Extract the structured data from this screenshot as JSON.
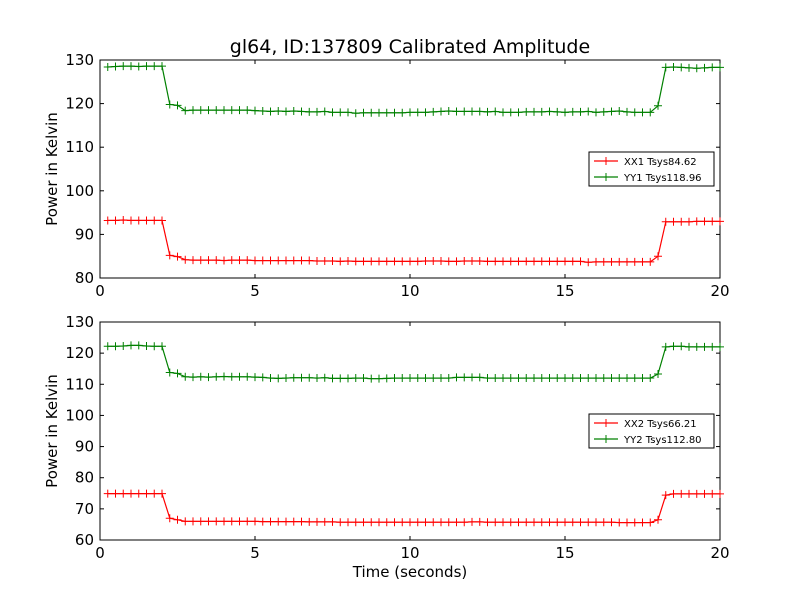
{
  "chart_data": [
    {
      "type": "line",
      "title": "gl64, ID:137809 Calibrated Amplitude",
      "xlabel": "",
      "ylabel": "Power in Kelvin",
      "xlim": [
        0,
        20
      ],
      "ylim": [
        80,
        130
      ],
      "xticks": [
        "0",
        "5",
        "10",
        "15",
        "20"
      ],
      "yticks": [
        "80",
        "90",
        "100",
        "110",
        "120",
        "130"
      ],
      "legend_position": "center-right",
      "series": [
        {
          "name": "XX1 Tsys84.62",
          "color": "#ff0000",
          "x": [
            0.25,
            0.5,
            0.75,
            1,
            1.25,
            1.5,
            1.75,
            2,
            2.25,
            2.5,
            2.75,
            3,
            3.25,
            3.5,
            3.75,
            4,
            4.25,
            4.5,
            4.75,
            5,
            5.25,
            5.5,
            5.75,
            6,
            6.25,
            6.5,
            6.75,
            7,
            7.25,
            7.5,
            7.75,
            8,
            8.25,
            8.5,
            8.75,
            9,
            9.25,
            9.5,
            9.75,
            10,
            10.25,
            10.5,
            10.75,
            11,
            11.25,
            11.5,
            11.75,
            12,
            12.25,
            12.5,
            12.75,
            13,
            13.25,
            13.5,
            13.75,
            14,
            14.25,
            14.5,
            14.75,
            15,
            15.25,
            15.5,
            15.75,
            16,
            16.25,
            16.5,
            16.75,
            17,
            17.25,
            17.5,
            17.75,
            18,
            18.25,
            18.5,
            18.75,
            19,
            19.25,
            19.5,
            19.75,
            20
          ],
          "y": [
            93.2,
            93.2,
            93.3,
            93.2,
            93.2,
            93.2,
            93.2,
            93.2,
            85.2,
            84.9,
            84.2,
            84.1,
            84.1,
            84.1,
            84.1,
            84.0,
            84.1,
            84.1,
            84.1,
            84.0,
            84.0,
            84.0,
            84.0,
            84.0,
            84.0,
            84.0,
            84.0,
            83.9,
            83.9,
            83.9,
            83.8,
            83.9,
            83.8,
            83.8,
            83.8,
            83.8,
            83.8,
            83.8,
            83.8,
            83.8,
            83.8,
            83.9,
            83.9,
            83.9,
            83.8,
            83.8,
            83.9,
            83.9,
            83.9,
            83.8,
            83.8,
            83.8,
            83.8,
            83.8,
            83.8,
            83.8,
            83.8,
            83.8,
            83.8,
            83.8,
            83.8,
            83.8,
            83.6,
            83.7,
            83.7,
            83.7,
            83.7,
            83.7,
            83.7,
            83.7,
            83.7,
            85.0,
            92.9,
            92.9,
            92.9,
            92.9,
            93.0,
            93.0,
            93.0,
            93.0
          ]
        },
        {
          "name": "YY1 Tsys118.96",
          "color": "#008000",
          "x": [
            0.25,
            0.5,
            0.75,
            1,
            1.25,
            1.5,
            1.75,
            2,
            2.25,
            2.5,
            2.75,
            3,
            3.25,
            3.5,
            3.75,
            4,
            4.25,
            4.5,
            4.75,
            5,
            5.25,
            5.5,
            5.75,
            6,
            6.25,
            6.5,
            6.75,
            7,
            7.25,
            7.5,
            7.75,
            8,
            8.25,
            8.5,
            8.75,
            9,
            9.25,
            9.5,
            9.75,
            10,
            10.25,
            10.5,
            10.75,
            11,
            11.25,
            11.5,
            11.75,
            12,
            12.25,
            12.5,
            12.75,
            13,
            13.25,
            13.5,
            13.75,
            14,
            14.25,
            14.5,
            14.75,
            15,
            15.25,
            15.5,
            15.75,
            16,
            16.25,
            16.5,
            16.75,
            17,
            17.25,
            17.5,
            17.75,
            18,
            18.25,
            18.5,
            18.75,
            19,
            19.25,
            19.5,
            19.75,
            20
          ],
          "y": [
            128.4,
            128.5,
            128.6,
            128.6,
            128.5,
            128.6,
            128.6,
            128.6,
            119.8,
            119.6,
            118.4,
            118.5,
            118.5,
            118.5,
            118.5,
            118.5,
            118.5,
            118.5,
            118.5,
            118.4,
            118.3,
            118.2,
            118.3,
            118.2,
            118.3,
            118.2,
            118.1,
            118.1,
            118.2,
            118.0,
            118.0,
            118.0,
            117.8,
            117.9,
            117.9,
            117.9,
            117.9,
            117.9,
            117.9,
            118.0,
            118.0,
            118.0,
            118.1,
            118.2,
            118.3,
            118.2,
            118.2,
            118.2,
            118.2,
            118.1,
            118.2,
            118.0,
            118.0,
            118.0,
            118.1,
            118.1,
            118.1,
            118.2,
            118.1,
            118.0,
            118.1,
            118.1,
            118.2,
            118.0,
            118.1,
            118.2,
            118.3,
            118.1,
            118.0,
            118.0,
            118.0,
            119.5,
            128.3,
            128.4,
            128.3,
            128.2,
            128.1,
            128.2,
            128.3,
            128.3
          ]
        }
      ]
    },
    {
      "type": "line",
      "title": "",
      "xlabel": "Time (seconds)",
      "ylabel": "Power in Kelvin",
      "xlim": [
        0,
        20
      ],
      "ylim": [
        60,
        130
      ],
      "xticks": [
        "0",
        "5",
        "10",
        "15",
        "20"
      ],
      "yticks": [
        "60",
        "70",
        "80",
        "90",
        "100",
        "110",
        "120",
        "130"
      ],
      "legend_position": "center-right",
      "series": [
        {
          "name": "XX2 Tsys66.21",
          "color": "#ff0000",
          "x": [
            0.25,
            0.5,
            0.75,
            1,
            1.25,
            1.5,
            1.75,
            2,
            2.25,
            2.5,
            2.75,
            3,
            3.25,
            3.5,
            3.75,
            4,
            4.25,
            4.5,
            4.75,
            5,
            5.25,
            5.5,
            5.75,
            6,
            6.25,
            6.5,
            6.75,
            7,
            7.25,
            7.5,
            7.75,
            8,
            8.25,
            8.5,
            8.75,
            9,
            9.25,
            9.5,
            9.75,
            10,
            10.25,
            10.5,
            10.75,
            11,
            11.25,
            11.5,
            11.75,
            12,
            12.25,
            12.5,
            12.75,
            13,
            13.25,
            13.5,
            13.75,
            14,
            14.25,
            14.5,
            14.75,
            15,
            15.25,
            15.5,
            15.75,
            16,
            16.25,
            16.5,
            16.75,
            17,
            17.25,
            17.5,
            17.75,
            18,
            18.25,
            18.5,
            18.75,
            19,
            19.25,
            19.5,
            19.75,
            20
          ],
          "y": [
            74.9,
            74.9,
            74.9,
            74.9,
            74.9,
            74.9,
            74.9,
            74.9,
            67.0,
            66.5,
            66.0,
            66.0,
            66.0,
            66.0,
            66.0,
            66.0,
            66.0,
            66.0,
            66.0,
            66.0,
            65.9,
            65.9,
            65.9,
            65.9,
            65.9,
            65.9,
            65.8,
            65.8,
            65.8,
            65.8,
            65.7,
            65.7,
            65.7,
            65.7,
            65.7,
            65.7,
            65.7,
            65.7,
            65.7,
            65.7,
            65.7,
            65.7,
            65.7,
            65.7,
            65.7,
            65.7,
            65.7,
            65.8,
            65.8,
            65.7,
            65.7,
            65.7,
            65.7,
            65.7,
            65.7,
            65.7,
            65.7,
            65.7,
            65.7,
            65.7,
            65.7,
            65.7,
            65.7,
            65.7,
            65.7,
            65.7,
            65.6,
            65.6,
            65.6,
            65.6,
            65.6,
            66.5,
            74.4,
            74.8,
            74.8,
            74.8,
            74.8,
            74.8,
            74.8,
            74.8
          ]
        },
        {
          "name": "YY2 Tsys112.80",
          "color": "#008000",
          "x": [
            0.25,
            0.5,
            0.75,
            1,
            1.25,
            1.5,
            1.75,
            2,
            2.25,
            2.5,
            2.75,
            3,
            3.25,
            3.5,
            3.75,
            4,
            4.25,
            4.5,
            4.75,
            5,
            5.25,
            5.5,
            5.75,
            6,
            6.25,
            6.5,
            6.75,
            7,
            7.25,
            7.5,
            7.75,
            8,
            8.25,
            8.5,
            8.75,
            9,
            9.25,
            9.5,
            9.75,
            10,
            10.25,
            10.5,
            10.75,
            11,
            11.25,
            11.5,
            11.75,
            12,
            12.25,
            12.5,
            12.75,
            13,
            13.25,
            13.5,
            13.75,
            14,
            14.25,
            14.5,
            14.75,
            15,
            15.25,
            15.5,
            15.75,
            16,
            16.25,
            16.5,
            16.75,
            17,
            17.25,
            17.5,
            17.75,
            18,
            18.25,
            18.5,
            18.75,
            19,
            19.25,
            19.5,
            19.75,
            20
          ],
          "y": [
            122.2,
            122.2,
            122.3,
            122.5,
            122.5,
            122.3,
            122.2,
            122.2,
            113.8,
            113.5,
            112.4,
            112.3,
            112.4,
            112.3,
            112.4,
            112.5,
            112.4,
            112.4,
            112.4,
            112.3,
            112.2,
            112.0,
            111.9,
            112.0,
            112.1,
            112.1,
            112.1,
            112.0,
            112.1,
            111.9,
            111.9,
            111.9,
            112.0,
            112.0,
            111.8,
            111.8,
            111.9,
            112.0,
            112.0,
            112.0,
            112.0,
            112.0,
            112.0,
            112.0,
            112.0,
            112.2,
            112.2,
            112.2,
            112.2,
            112.0,
            112.0,
            112.0,
            112.0,
            112.0,
            112.0,
            112.0,
            112.0,
            112.0,
            112.0,
            112.0,
            112.0,
            112.0,
            112.0,
            112.0,
            112.0,
            112.0,
            112.0,
            112.0,
            112.0,
            112.0,
            112.0,
            113.3,
            122.0,
            122.2,
            122.2,
            122.0,
            122.0,
            122.0,
            122.0,
            122.0
          ]
        }
      ]
    }
  ]
}
